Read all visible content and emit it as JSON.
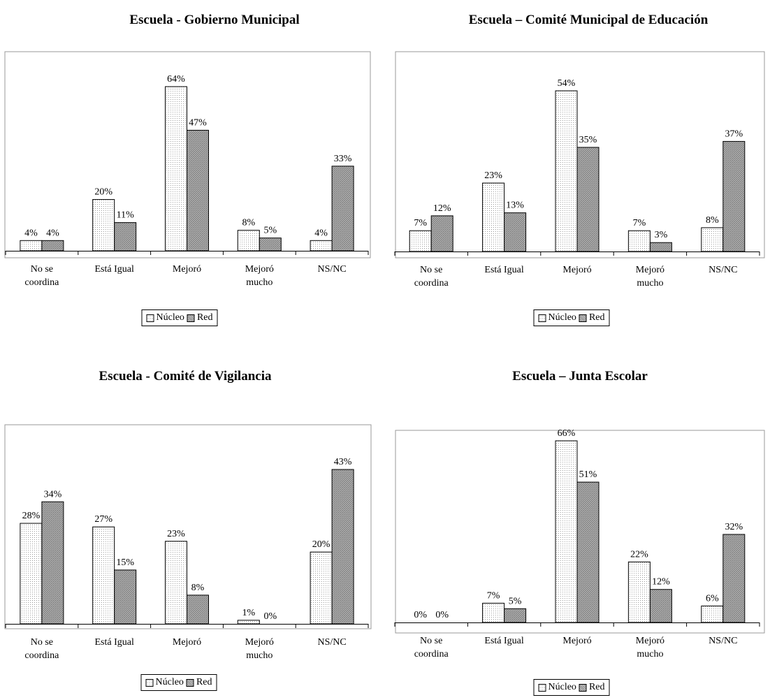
{
  "legend": {
    "nucleo": "Núcleo",
    "red": "Red"
  },
  "chart_data": [
    {
      "type": "bar",
      "title": "Escuela -  Gobierno Municipal",
      "categories": [
        [
          "No se",
          "coordina"
        ],
        [
          "Está Igual"
        ],
        [
          "Mejoró"
        ],
        [
          "Mejoró",
          "mucho"
        ],
        [
          "NS/NC"
        ]
      ],
      "series": [
        {
          "name": "Núcleo",
          "values": [
            4,
            20,
            64,
            8,
            4
          ]
        },
        {
          "name": "Red",
          "values": [
            4,
            11,
            47,
            5,
            33
          ]
        }
      ],
      "ylim": [
        0,
        64
      ],
      "legend_position": "bottom"
    },
    {
      "type": "bar",
      "title": "Escuela – Comité Municipal de Educación",
      "categories": [
        [
          "No se",
          "coordina"
        ],
        [
          "Está Igual"
        ],
        [
          "Mejoró"
        ],
        [
          "Mejoró",
          "mucho"
        ],
        [
          "NS/NC"
        ]
      ],
      "series": [
        {
          "name": "Núcleo",
          "values": [
            7,
            23,
            54,
            7,
            8
          ]
        },
        {
          "name": "Red",
          "values": [
            12,
            13,
            35,
            3,
            37
          ]
        }
      ],
      "ylim": [
        0,
        54
      ],
      "legend_position": "bottom"
    },
    {
      "type": "bar",
      "title": "Escuela -  Comité de Vigilancia",
      "categories": [
        [
          "No se",
          "coordina"
        ],
        [
          "Está Igual"
        ],
        [
          "Mejoró"
        ],
        [
          "Mejoró",
          "mucho"
        ],
        [
          "NS/NC"
        ]
      ],
      "series": [
        {
          "name": "Núcleo",
          "values": [
            28,
            27,
            23,
            1,
            20
          ]
        },
        {
          "name": "Red",
          "values": [
            34,
            15,
            8,
            0,
            43
          ]
        }
      ],
      "ylim": [
        0,
        43
      ],
      "legend_position": "bottom"
    },
    {
      "type": "bar",
      "title": "Escuela – Junta Escolar",
      "categories": [
        [
          "No se",
          "coordina"
        ],
        [
          "Está Igual"
        ],
        [
          "Mejoró"
        ],
        [
          "Mejoró",
          "mucho"
        ],
        [
          "NS/NC"
        ]
      ],
      "series": [
        {
          "name": "Núcleo",
          "values": [
            0,
            7,
            66,
            22,
            6
          ]
        },
        {
          "name": "Red",
          "values": [
            0,
            5,
            51,
            12,
            32
          ]
        }
      ],
      "ylim": [
        0,
        66
      ],
      "legend_position": "bottom"
    }
  ],
  "colors": {
    "nucleo_fill": "#ffffff",
    "red_fill": "#b4b4b4",
    "stroke": "#000000"
  }
}
